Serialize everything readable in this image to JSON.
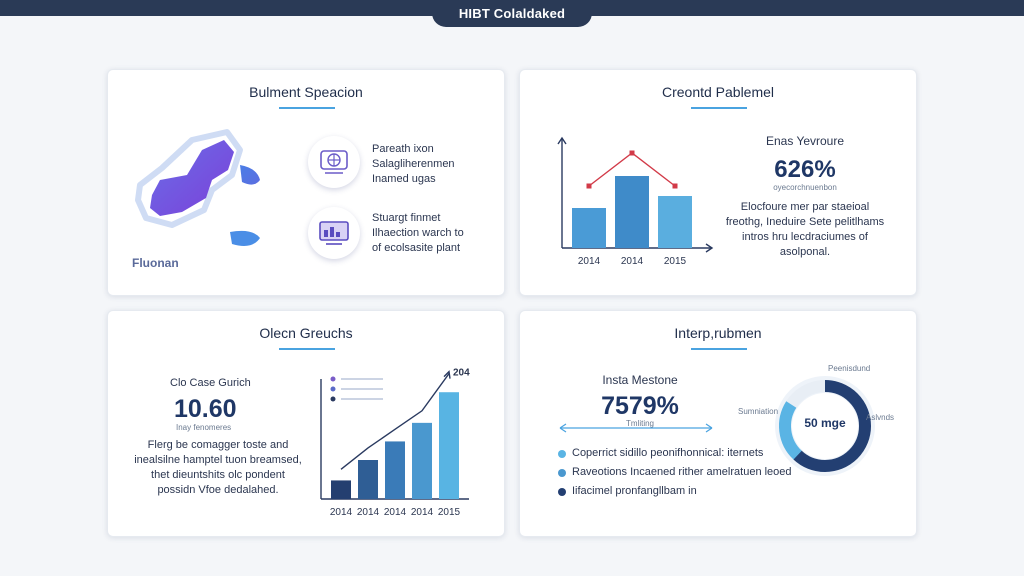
{
  "header": {
    "title": "HIBT Colaldaked"
  },
  "card1": {
    "title": "Bulment Speacion",
    "map_label": "Fluonan",
    "items": [
      {
        "icon": "network-globe-icon",
        "lines": [
          "Pareath ixon",
          "Salagliherenmen",
          "Inamed ugas"
        ]
      },
      {
        "icon": "monitor-chart-icon",
        "lines": [
          "Stuargt finmet",
          "Ilhaection warch to",
          "of ecolsasite plant"
        ]
      }
    ]
  },
  "card2": {
    "title": "Creontd Pablemel",
    "stat_title": "Enas Yevroure",
    "stat_value": "626%",
    "stat_sub": "oyecorchnuenbon",
    "desc": [
      "Elocfoure mer par staeioal",
      "freothg, Ineduire Sete pelitlhams",
      "intros hru lecdraciumes of",
      "asolponal."
    ],
    "chart_data": {
      "type": "bar",
      "categories": [
        "2014",
        "2014",
        "2015"
      ],
      "values": [
        40,
        72,
        52
      ],
      "line_values": [
        62,
        95,
        62
      ],
      "ylim": [
        0,
        110
      ],
      "colors": {
        "bar": [
          "#4a9bd6",
          "#3f8bc9",
          "#5aaedf"
        ],
        "line": "#d23a48"
      }
    }
  },
  "card3": {
    "title": "Olecn Greuchs",
    "stat_title": "Clo Case Gurich",
    "stat_value": "10.60",
    "stat_sub": "Inay fenomeres",
    "desc": [
      "Flerg be comagger toste and",
      "inealsilne hamptel tuon breamsed,",
      "thet dieuntshits olc pondent",
      "possidn Vfoe dedalahed."
    ],
    "chart_data": {
      "type": "bar",
      "categories": [
        "2014",
        "2014",
        "2014",
        "2014",
        "2015"
      ],
      "values": [
        20,
        42,
        62,
        82,
        115
      ],
      "line_values": [
        32,
        55,
        75,
        95,
        135
      ],
      "annotation": "204",
      "ylim": [
        0,
        140
      ],
      "colors": {
        "bar": [
          "#243f70",
          "#2f5e95",
          "#3a7bb8",
          "#4a98cf",
          "#58b4e3"
        ],
        "line": "#2a3a60"
      }
    }
  },
  "card4": {
    "title": "Interp,rubmen",
    "stat_title": "Insta Mestone",
    "stat_value": "7579%",
    "stat_sub": "Tmliting",
    "donut": {
      "label": "50 mge",
      "value": 0.62,
      "colors": {
        "main": "#233f72",
        "secondary": "#5ab4e4",
        "track": "#e8eef5"
      },
      "callouts": [
        "Peenisdund",
        "Sumniation",
        "Aslvnds"
      ]
    },
    "legend": [
      {
        "text": "Coperrict sidillo peonifhonnical: iternets",
        "color": "#5ab4e4"
      },
      {
        "text": "Raveotions Incaened rither amelratuen leoed",
        "color": "#4a98cf"
      },
      {
        "text": "Iifacimel pronfangllbam in",
        "color": "#233f72"
      }
    ]
  }
}
